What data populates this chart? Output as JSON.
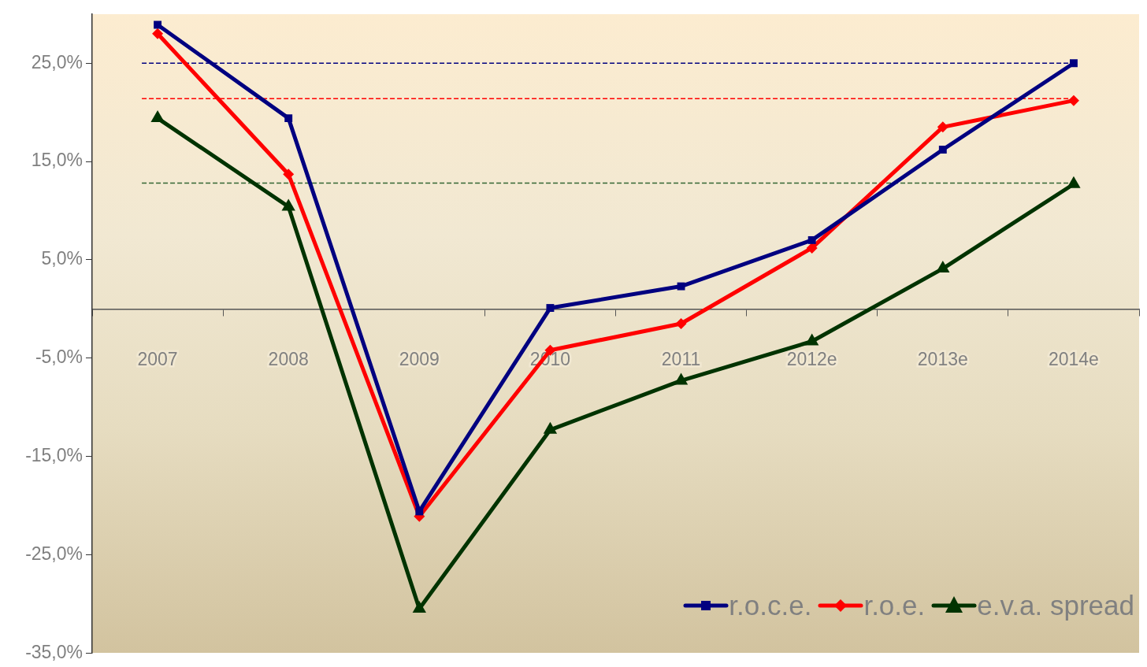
{
  "chart_data": {
    "type": "line",
    "categories": [
      "2007",
      "2008",
      "2009",
      "2010",
      "2011",
      "2012e",
      "2013e",
      "2014e"
    ],
    "series": [
      {
        "name": "r.o.c.e.",
        "color": "#000080",
        "marker": "square",
        "values": [
          28.9,
          19.4,
          -20.6,
          0.1,
          2.3,
          7.0,
          16.2,
          25.0
        ]
      },
      {
        "name": "r.o.e.",
        "color": "#ff0000",
        "marker": "diamond",
        "values": [
          28.0,
          13.7,
          -21.1,
          -4.2,
          -1.5,
          6.2,
          18.5,
          21.2
        ]
      },
      {
        "name": "e.v.a. spread",
        "color": "#003300",
        "marker": "triangle",
        "values": [
          19.4,
          10.4,
          -30.5,
          -12.3,
          -7.3,
          -3.3,
          4.1,
          12.7
        ]
      }
    ],
    "ylim": [
      -35,
      30
    ],
    "yticks": [
      {
        "value": -35,
        "label": "-35,0%"
      },
      {
        "value": -25,
        "label": "-25,0%"
      },
      {
        "value": -15,
        "label": "-15,0%"
      },
      {
        "value": -5,
        "label": "-5,0%"
      },
      {
        "value": 5,
        "label": "5,0%"
      },
      {
        "value": 15,
        "label": "15,0%"
      },
      {
        "value": 25,
        "label": "25,0%"
      }
    ],
    "ref_lines": [
      {
        "axis": "y",
        "value": 25.0,
        "color": "#000080",
        "line_style": "dashed"
      },
      {
        "axis": "y",
        "value": 21.4,
        "color": "#ff0000",
        "line_style": "dashed"
      },
      {
        "axis": "y",
        "value": 12.8,
        "color": "#336633",
        "line_style": "dashed"
      }
    ],
    "grid": false,
    "legend": "bottom right",
    "line_style": "solid"
  }
}
